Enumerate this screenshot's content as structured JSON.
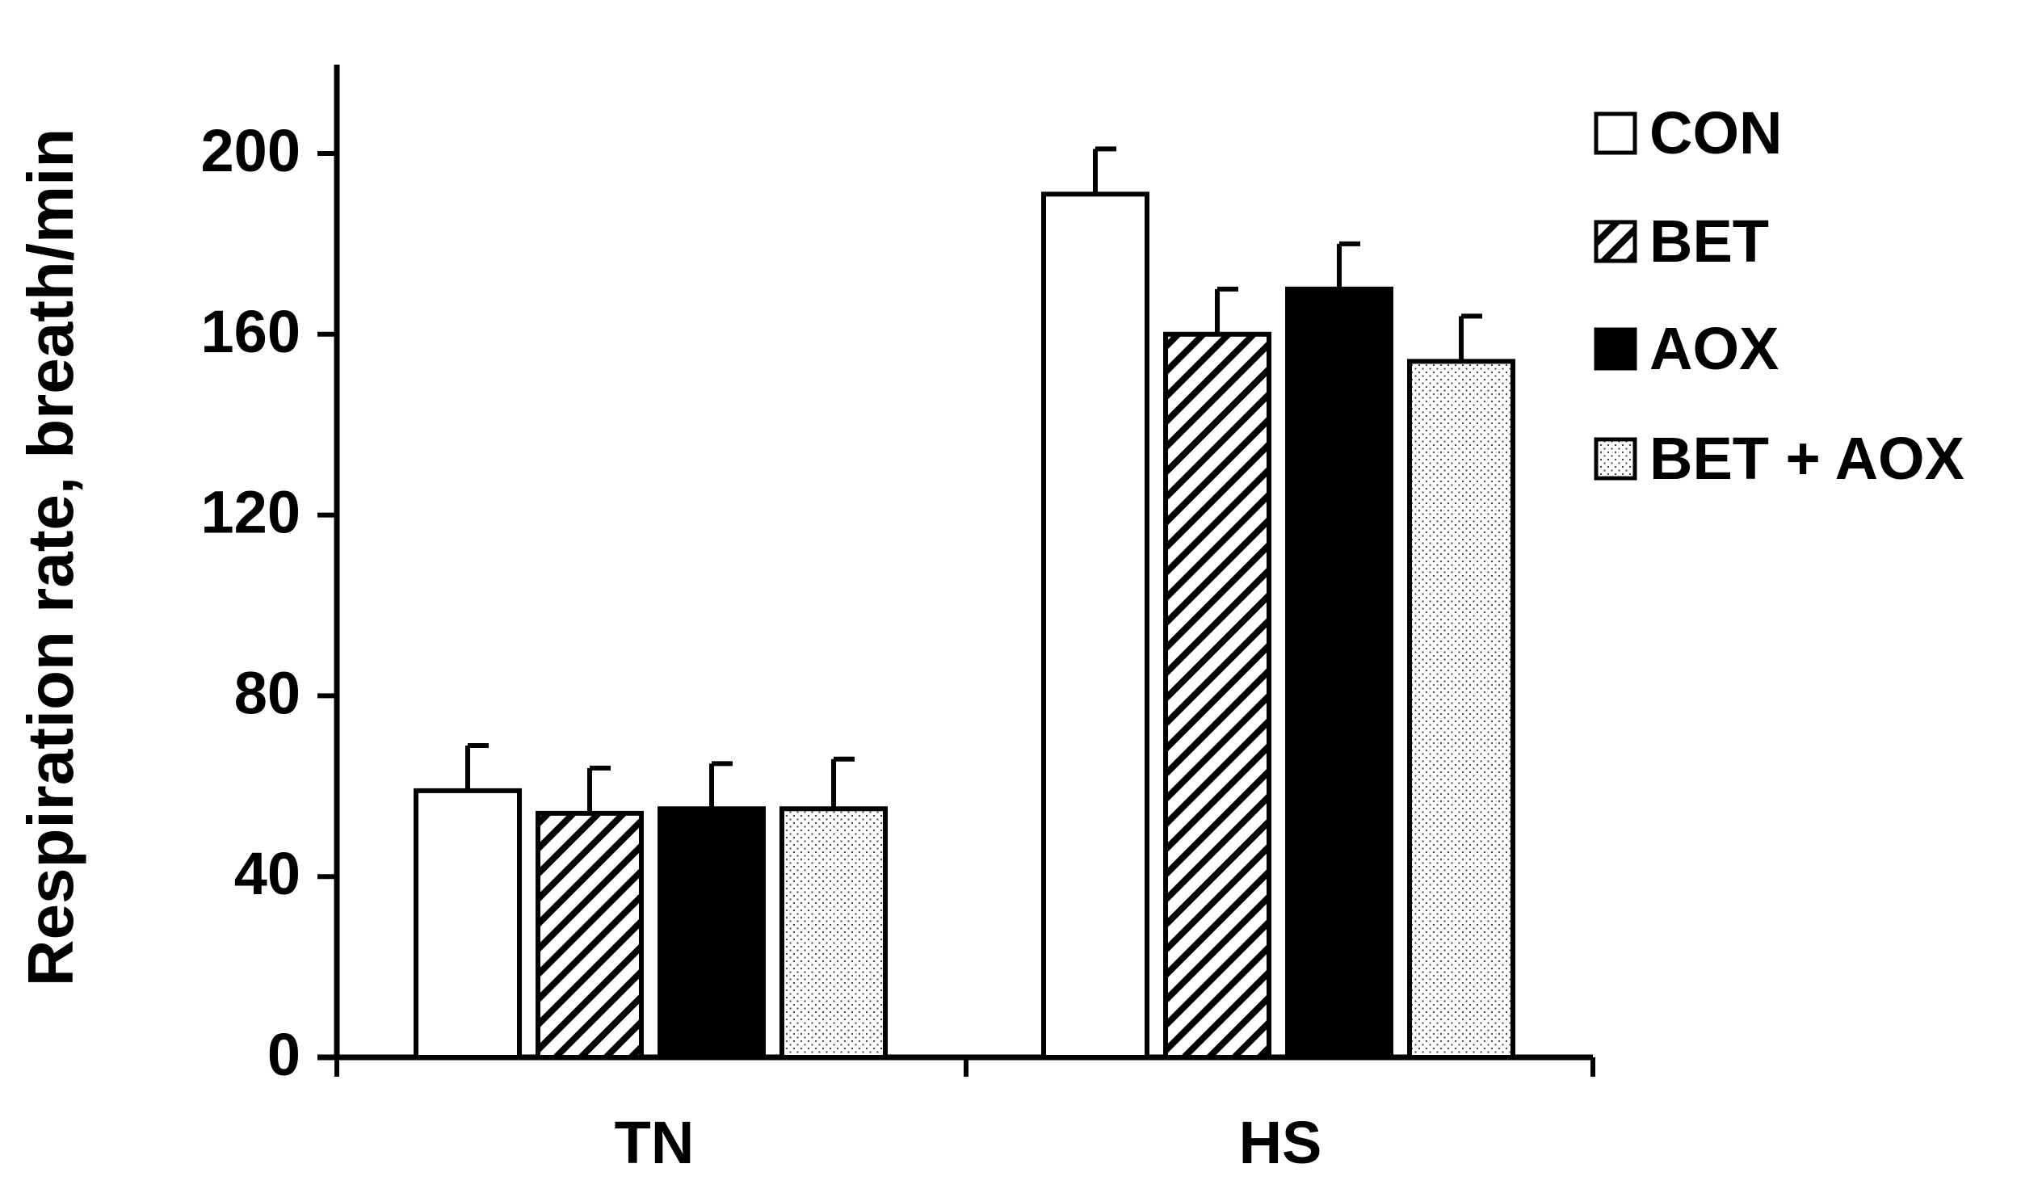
{
  "chart_data": {
    "type": "bar",
    "title": "",
    "xlabel": "",
    "ylabel": "Respiration rate, breath/min",
    "categories": [
      "TN",
      "HS"
    ],
    "ylim": [
      0,
      220
    ],
    "yticks": [
      0,
      40,
      80,
      120,
      160,
      200
    ],
    "grid": false,
    "legend_position": "top-right",
    "series": [
      {
        "name": "CON",
        "fill": "white",
        "values": [
          59,
          191
        ],
        "errors": [
          10,
          10
        ]
      },
      {
        "name": "BET",
        "fill": "hatch",
        "values": [
          54,
          160
        ],
        "errors": [
          10,
          10
        ]
      },
      {
        "name": "AOX",
        "fill": "black",
        "values": [
          55,
          170
        ],
        "errors": [
          10,
          10
        ]
      },
      {
        "name": "BET + AOX",
        "fill": "dots",
        "values": [
          55,
          154
        ],
        "errors": [
          11,
          10
        ]
      }
    ]
  },
  "colors": {
    "axis": "#000000",
    "bar_outline": "#000000",
    "solid_fill": "#000000",
    "open_fill": "#ffffff"
  }
}
